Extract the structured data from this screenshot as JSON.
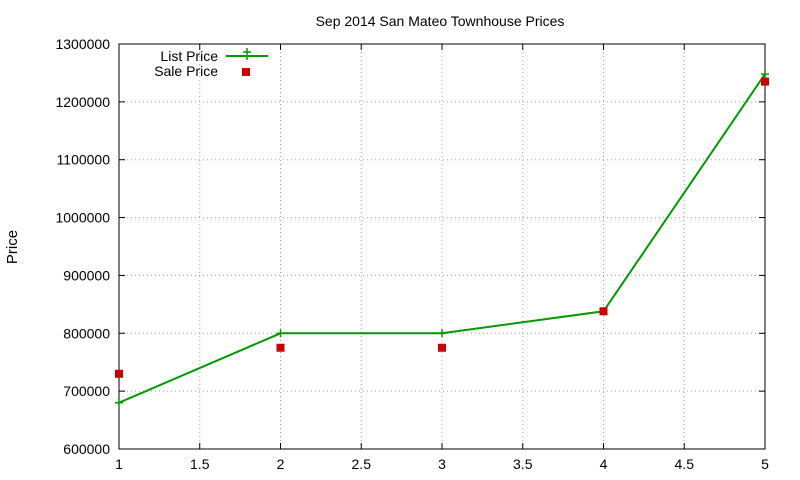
{
  "chart_data": {
    "type": "line",
    "title": "Sep 2014 San Mateo Townhouse Prices",
    "xlabel": "",
    "ylabel": "Price",
    "xlim": [
      1,
      5
    ],
    "ylim": [
      600000,
      1300000
    ],
    "xticks": [
      "1",
      "1.5",
      "2",
      "2.5",
      "3",
      "3.5",
      "4",
      "4.5",
      "5"
    ],
    "yticks": [
      "600000",
      "700000",
      "800000",
      "900000",
      "1000000",
      "1100000",
      "1200000",
      "1300000"
    ],
    "grid": true,
    "legend_position": "top-left",
    "series": [
      {
        "name": "List Price",
        "style": "lines+points",
        "color": "#009900",
        "x": [
          1,
          2,
          3,
          4,
          5
        ],
        "y": [
          680000,
          800000,
          800000,
          838000,
          1248000
        ]
      },
      {
        "name": "Sale Price",
        "style": "points",
        "color": "#cc0000",
        "x": [
          1,
          2,
          3,
          4,
          5
        ],
        "y": [
          730000,
          775000,
          775000,
          838000,
          1235000
        ]
      }
    ]
  }
}
